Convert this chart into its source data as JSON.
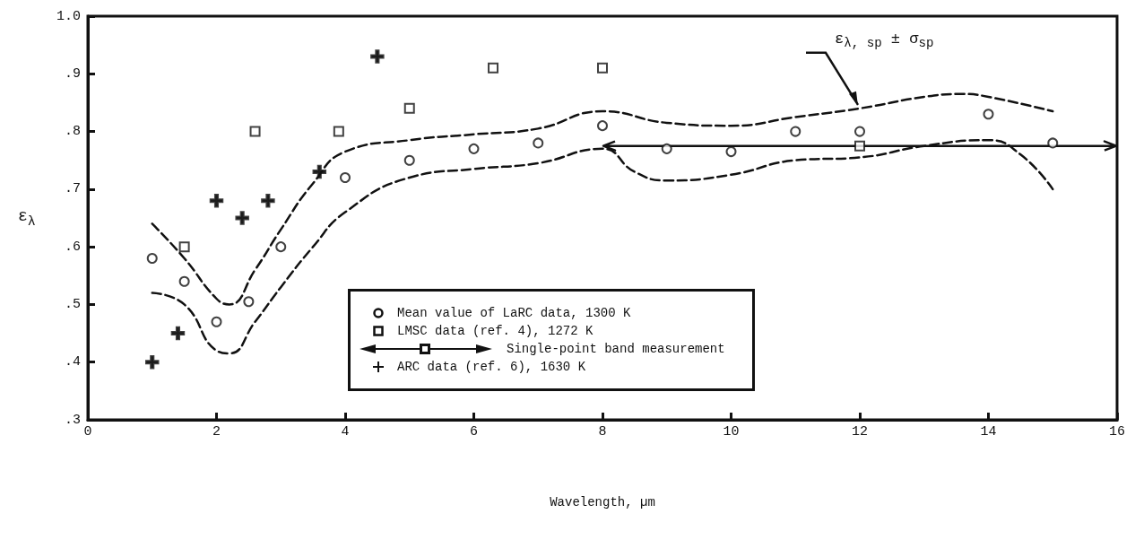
{
  "chart_data": {
    "type": "scatter",
    "xlabel": "Wavelength, µm",
    "ylabel": "ε$_{λ}$",
    "xlim": [
      0,
      16
    ],
    "xticks": [
      0,
      2,
      4,
      6,
      8,
      10,
      12,
      14,
      16
    ],
    "ylim": [
      0.3,
      1.0
    ],
    "yticks": [
      {
        "value": 0.3,
        "label": ".3"
      },
      {
        "value": 0.4,
        "label": ".4"
      },
      {
        "value": 0.5,
        "label": ".5"
      },
      {
        "value": 0.6,
        "label": ".6"
      },
      {
        "value": 0.7,
        "label": ".7"
      },
      {
        "value": 0.8,
        "label": ".8"
      },
      {
        "value": 0.9,
        "label": ".9"
      },
      {
        "value": 1.0,
        "label": "1.0"
      }
    ],
    "grid": false,
    "legend": "bottom",
    "series": [
      {
        "name": "Mean value of LaRC data, 1300 K",
        "type": "scatter",
        "marker": "circle",
        "color": "#111111",
        "x": [
          1,
          1.5,
          2,
          2.5,
          3,
          4,
          5,
          6,
          7,
          8,
          9,
          10,
          11,
          12,
          14,
          15
        ],
        "values": [
          0.58,
          0.54,
          0.47,
          0.505,
          0.6,
          0.72,
          0.75,
          0.77,
          0.78,
          0.81,
          0.77,
          0.765,
          0.8,
          0.8,
          0.83,
          0.78
        ]
      },
      {
        "name": "LMSC data (ref. 4), 1272 K",
        "type": "scatter",
        "marker": "square",
        "color": "#111111",
        "x": [
          1.5,
          2.6,
          3.9,
          5,
          6.3,
          8,
          12
        ],
        "values": [
          0.6,
          0.8,
          0.8,
          0.84,
          0.91,
          0.91,
          0.775
        ],
        "xerrors": [
          null,
          null,
          null,
          null,
          null,
          null,
          [
            8,
            16
          ]
        ]
      },
      {
        "name": "ARC data (ref. 6), 1630 K",
        "type": "scatter",
        "marker": "cross",
        "color": "#111111",
        "x": [
          1,
          1.4,
          2,
          2.4,
          2.8,
          3.6,
          4.5
        ],
        "values": [
          0.4,
          0.45,
          0.68,
          0.65,
          0.68,
          0.73,
          0.93
        ]
      },
      {
        "type": "line",
        "marker": "none",
        "line_style": "dashed",
        "color": "#111111",
        "x": [
          1,
          1.5,
          2,
          2.2,
          2.6,
          3,
          3.5,
          4,
          5,
          6,
          7,
          8,
          9,
          10,
          11,
          12,
          13,
          13.6,
          14,
          15
        ],
        "values": [
          0.64,
          0.58,
          0.51,
          0.5,
          0.56,
          0.63,
          0.71,
          0.765,
          0.785,
          0.795,
          0.805,
          0.835,
          0.815,
          0.81,
          0.825,
          0.84,
          0.86,
          0.865,
          0.86,
          0.835
        ]
      },
      {
        "type": "line",
        "marker": "none",
        "line_style": "dashed",
        "color": "#111111",
        "x": [
          1,
          1.5,
          2,
          2.2,
          2.6,
          3,
          3.5,
          4,
          5,
          6,
          7,
          8,
          8.5,
          9,
          10,
          11,
          12,
          13,
          14,
          14.5,
          15
        ],
        "values": [
          0.52,
          0.5,
          0.42,
          0.415,
          0.47,
          0.53,
          0.6,
          0.66,
          0.72,
          0.735,
          0.745,
          0.77,
          0.73,
          0.715,
          0.725,
          0.75,
          0.755,
          0.775,
          0.785,
          0.76,
          0.7
        ]
      }
    ],
    "annotations": [
      {
        "text": "ε$_{λ, sp}$ ± σ$_{sp}$",
        "x": 12,
        "y": 0.84
      },
      "Single-point band measurement"
    ]
  }
}
